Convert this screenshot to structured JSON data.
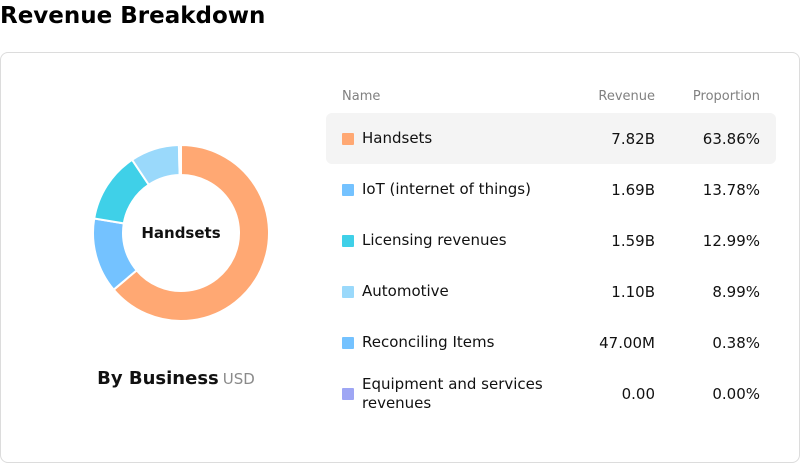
{
  "page": {
    "title": "Revenue Breakdown"
  },
  "donut": {
    "center_label": "Handsets",
    "caption": "By Business",
    "currency": "USD"
  },
  "table": {
    "headers": {
      "name": "Name",
      "revenue": "Revenue",
      "proportion": "Proportion"
    },
    "selected_index": 0,
    "rows": [
      {
        "name": "Handsets",
        "revenue": "7.82B",
        "proportion": "63.86%",
        "color": "#ffa873"
      },
      {
        "name": "IoT (internet of things)",
        "revenue": "1.69B",
        "proportion": "13.78%",
        "color": "#74c2ff"
      },
      {
        "name": "Licensing revenues",
        "revenue": "1.59B",
        "proportion": "12.99%",
        "color": "#3fd0e8"
      },
      {
        "name": "Automotive",
        "revenue": "1.10B",
        "proportion": "8.99%",
        "color": "#9ad9fb"
      },
      {
        "name": "Reconciling Items",
        "revenue": "47.00M",
        "proportion": "0.38%",
        "color": "#74c2ff"
      },
      {
        "name": "Equipment and services revenues",
        "revenue": "0.00",
        "proportion": "0.00%",
        "color": "#9ea6f4"
      }
    ]
  },
  "chart_data": {
    "type": "pie",
    "title": "By Business",
    "unit": "USD",
    "categories": [
      "Handsets",
      "IoT (internet of things)",
      "Licensing revenues",
      "Automotive",
      "Reconciling Items",
      "Equipment and services revenues"
    ],
    "values": [
      63.86,
      13.78,
      12.99,
      8.99,
      0.38,
      0.0
    ],
    "colors": [
      "#ffa873",
      "#74c2ff",
      "#3fd0e8",
      "#9ad9fb",
      "#74c2ff",
      "#9ea6f4"
    ],
    "donut": true,
    "legend": "right-table"
  }
}
